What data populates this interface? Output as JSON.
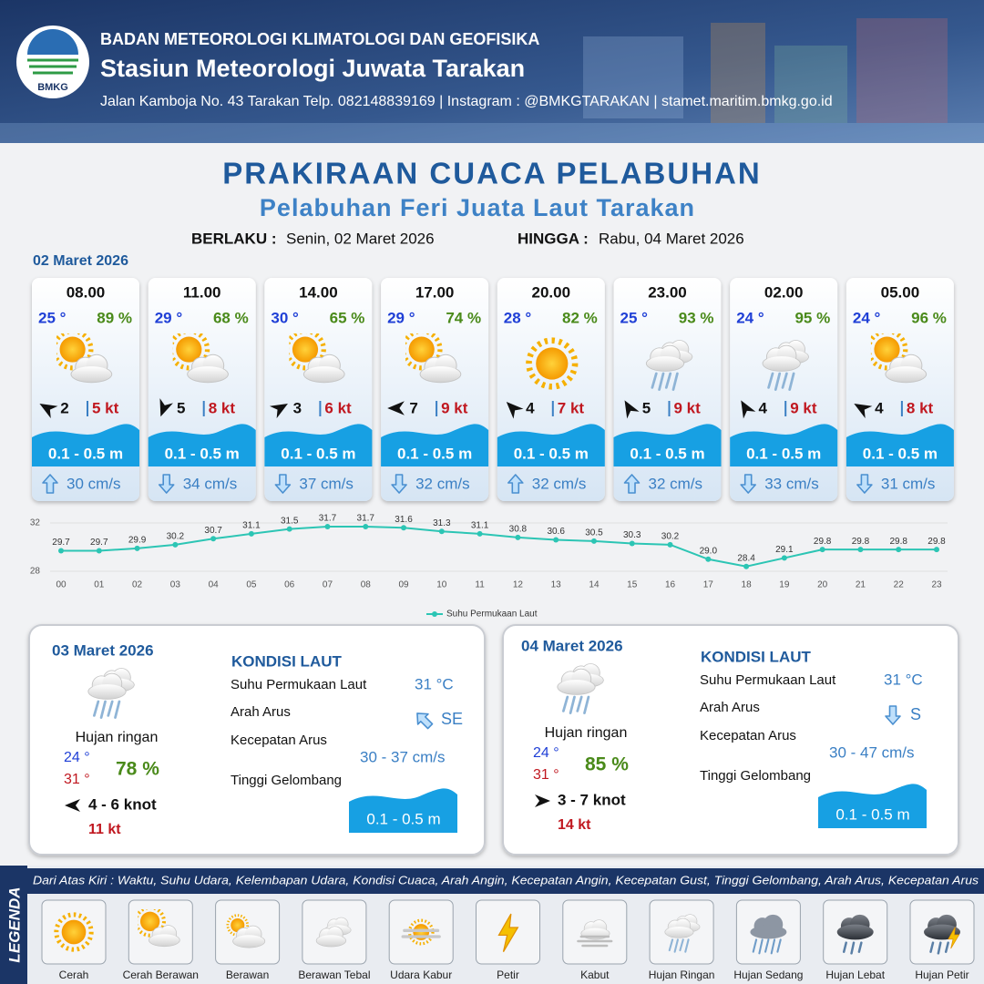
{
  "header": {
    "logo": "BMKG",
    "org": "BADAN METEOROLOGI KLIMATOLOGI DAN GEOFISIKA",
    "station": "Stasiun Meteorologi Juwata Tarakan",
    "contact": "Jalan Kamboja No. 43 Tarakan  Telp. 082148839169 | Instagram : @BMKGTARAKAN | stamet.maritim.bmkg.go.id"
  },
  "title": "PRAKIRAAN CUACA PELABUHAN",
  "subtitle": "Pelabuhan Feri Juata Laut Tarakan",
  "validity": {
    "from_label": "BERLAKU :",
    "from": "Senin, 02 Maret 2026",
    "to_label": "HINGGA :",
    "to": "Rabu, 04 Maret 2026"
  },
  "today": {
    "date": "02 Maret 2026",
    "slots": [
      {
        "time": "08.00",
        "temp": "25 °",
        "humidity": "89 %",
        "wind": "2",
        "gust": "5 kt",
        "wave": "0.1 - 0.5 m",
        "current": "30 cm/s"
      },
      {
        "time": "11.00",
        "temp": "29 °",
        "humidity": "68 %",
        "wind": "5",
        "gust": "8 kt",
        "wave": "0.1 - 0.5 m",
        "current": "34 cm/s"
      },
      {
        "time": "14.00",
        "temp": "30 °",
        "humidity": "65 %",
        "wind": "3",
        "gust": "6 kt",
        "wave": "0.1 - 0.5 m",
        "current": "37 cm/s"
      },
      {
        "time": "17.00",
        "temp": "29 °",
        "humidity": "74 %",
        "wind": "7",
        "gust": "9 kt",
        "wave": "0.1 - 0.5 m",
        "current": "32 cm/s"
      },
      {
        "time": "20.00",
        "temp": "28 °",
        "humidity": "82 %",
        "wind": "4",
        "gust": "7 kt",
        "wave": "0.1 - 0.5 m",
        "current": "32 cm/s"
      },
      {
        "time": "23.00",
        "temp": "25 °",
        "humidity": "93 %",
        "wind": "5",
        "gust": "9 kt",
        "wave": "0.1 - 0.5 m",
        "current": "32 cm/s"
      },
      {
        "time": "02.00",
        "temp": "24 °",
        "humidity": "95 %",
        "wind": "4",
        "gust": "9 kt",
        "wave": "0.1 - 0.5 m",
        "current": "33 cm/s"
      },
      {
        "time": "05.00",
        "temp": "24 °",
        "humidity": "96 %",
        "wind": "4",
        "gust": "8 kt",
        "wave": "0.1 - 0.5 m",
        "current": "31 cm/s"
      }
    ]
  },
  "chart_data": {
    "type": "line",
    "categories": [
      "00",
      "01",
      "02",
      "03",
      "04",
      "05",
      "06",
      "07",
      "08",
      "09",
      "10",
      "11",
      "12",
      "13",
      "14",
      "15",
      "16",
      "17",
      "18",
      "19",
      "20",
      "21",
      "22",
      "23"
    ],
    "series": [
      {
        "name": "Suhu Permukaan Laut",
        "color": "#2cc5b4",
        "values": [
          29.7,
          29.7,
          29.9,
          30.2,
          30.7,
          31.1,
          31.5,
          31.7,
          31.7,
          31.6,
          31.3,
          31.1,
          30.8,
          30.6,
          30.5,
          30.3,
          30.2,
          29.0,
          28.4,
          29.1,
          29.8,
          29.8,
          29.8,
          29.8
        ],
        "value_labels": [
          "29.7",
          "29.7",
          "29.9",
          "30.2",
          "30.7",
          "31.1",
          "31.5",
          "31.7",
          "31.7",
          "31.6",
          "31.3",
          "31.1",
          "30.8",
          "30.6",
          "30.5",
          "30.3",
          "30.2",
          "29.0",
          "28.4",
          "29.1",
          "29.8",
          "29.8",
          "29.8",
          "29.8"
        ]
      }
    ],
    "ylim": [
      28,
      32
    ],
    "yticks": [
      28,
      32
    ],
    "grid": true
  },
  "days": [
    {
      "date": "03 Maret 2026",
      "weather": "Hujan ringan",
      "tmin": "24 °",
      "tmax": "31 °",
      "humidity": "78 %",
      "wind": "4  - 6 knot",
      "gust": "11 kt",
      "sea_title": "KONDISI LAUT",
      "sst_label": "Suhu Permukaan Laut",
      "sst": "31 °C",
      "dir_label": "Arah Arus",
      "dir": "SE",
      "speed_label": "Kecepatan Arus",
      "speed": "30 - 37 cm/s",
      "wave_label": "Tinggi Gelombang",
      "wave": "0.1 - 0.5 m"
    },
    {
      "date": "04 Maret 2026",
      "weather": "Hujan ringan",
      "tmin": "24 °",
      "tmax": "31 °",
      "humidity": "85 %",
      "wind": "3  - 7 knot",
      "gust": "14 kt",
      "sea_title": "KONDISI LAUT",
      "sst_label": "Suhu Permukaan Laut",
      "sst": "31 °C",
      "dir_label": "Arah Arus",
      "dir": "S",
      "speed_label": "Kecepatan Arus",
      "speed": "30 - 47 cm/s",
      "wave_label": "Tinggi Gelombang",
      "wave": "0.1 - 0.5 m"
    }
  ],
  "legend": {
    "title": "LEGENDA",
    "description": "Dari Atas Kiri : Waktu, Suhu Udara, Kelembapan Udara, Kondisi Cuaca, Arah Angin, Kecepatan Angin, Kecepatan Gust, Tinggi Gelombang, Arah Arus, Kecepatan Arus",
    "items": [
      "Cerah",
      "Cerah Berawan",
      "Berawan",
      "Berawan Tebal",
      "Udara Kabur",
      "Petir",
      "Kabut",
      "Hujan Ringan",
      "Hujan Sedang",
      "Hujan Lebat",
      "Hujan Petir"
    ]
  }
}
